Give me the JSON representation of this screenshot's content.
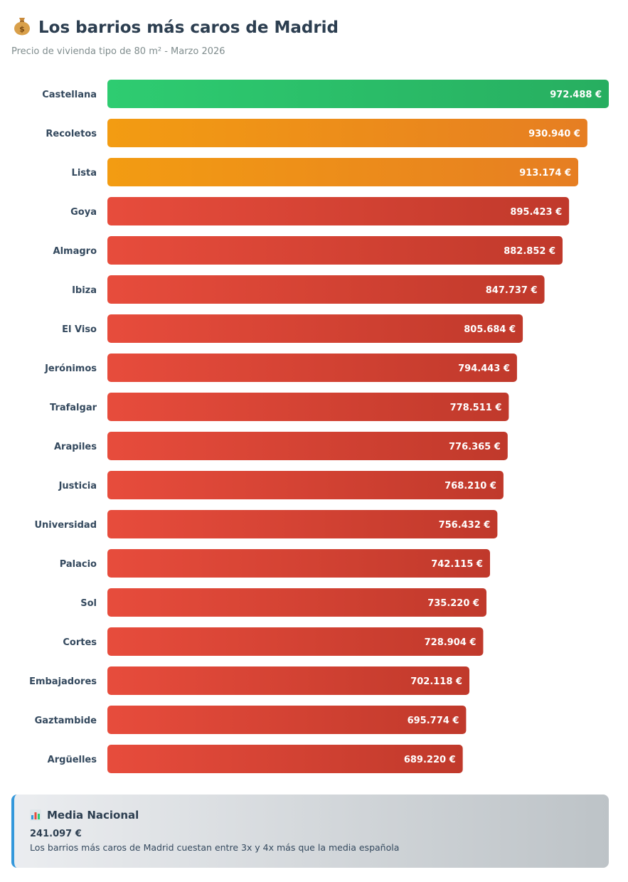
{
  "header": {
    "icon": "money-bag-icon",
    "title": "Los barrios más caros de Madrid",
    "subtitle": "Precio de vivienda tipo de 80 m² - Marzo 2026"
  },
  "chart_data": {
    "type": "bar",
    "orientation": "horizontal",
    "title": "Los barrios más caros de Madrid",
    "subtitle": "Precio de vivienda tipo de 80 m² - Marzo 2026",
    "xlabel": "",
    "ylabel": "",
    "unit": "€",
    "xlim": [
      0,
      972488
    ],
    "categories": [
      "Castellana",
      "Recoletos",
      "Lista",
      "Goya",
      "Almagro",
      "Ibiza",
      "El Viso",
      "Jerónimos",
      "Trafalgar",
      "Arapiles",
      "Justicia",
      "Universidad",
      "Palacio",
      "Sol",
      "Cortes",
      "Embajadores",
      "Gaztambide",
      "Argüelles"
    ],
    "values": [
      972488,
      930940,
      913174,
      895423,
      882852,
      847737,
      805684,
      794443,
      778511,
      776365,
      768210,
      756432,
      742115,
      735220,
      728904,
      702118,
      695774,
      689220
    ],
    "value_labels": [
      "972.488 €",
      "930.940 €",
      "913.174 €",
      "895.423 €",
      "882.852 €",
      "847.737 €",
      "805.684 €",
      "794.443 €",
      "778.511 €",
      "776.365 €",
      "768.210 €",
      "756.432 €",
      "742.115 €",
      "735.220 €",
      "728.904 €",
      "702.118 €",
      "695.774 €",
      "689.220 €"
    ],
    "tiers": [
      "top",
      "high",
      "high",
      "normal",
      "normal",
      "normal",
      "normal",
      "normal",
      "normal",
      "normal",
      "normal",
      "normal",
      "normal",
      "normal",
      "normal",
      "normal",
      "normal",
      "normal"
    ],
    "colors": {
      "top": [
        "#2ecc71",
        "#27ae60"
      ],
      "high": [
        "#f39c12",
        "#e67e22"
      ],
      "normal": [
        "#e74c3c",
        "#c0392b"
      ]
    }
  },
  "summary": {
    "icon": "bar-chart-icon",
    "title": "Media Nacional",
    "value": "241.097 €",
    "note": "Los barrios más caros de Madrid cuestan entre 3x y 4x más que la media española",
    "accent": "#3498db"
  }
}
